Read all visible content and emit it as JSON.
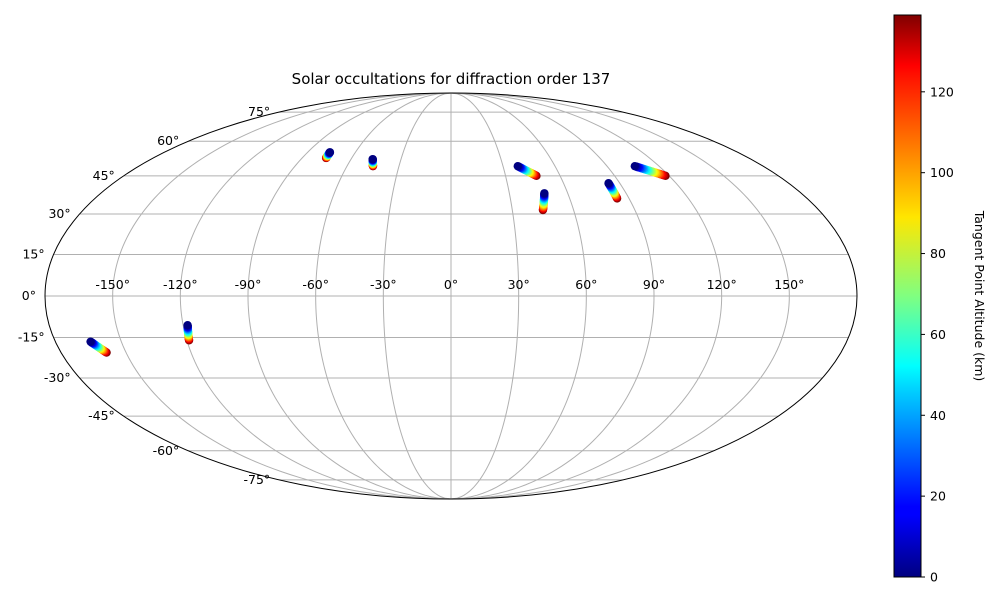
{
  "chart_data": {
    "type": "scatter",
    "projection": "mollweide",
    "title": "Solar occultations for diffraction order 137",
    "lon_ticks": [
      "-150°",
      "-120°",
      "-90°",
      "-60°",
      "-30°",
      "0°",
      "30°",
      "60°",
      "90°",
      "120°",
      "150°"
    ],
    "lon_tick_values": [
      -150,
      -120,
      -90,
      -60,
      -30,
      0,
      30,
      60,
      90,
      120,
      150
    ],
    "lat_ticks": [
      "-75°",
      "-60°",
      "-45°",
      "-30°",
      "-15°",
      "0°",
      "15°",
      "30°",
      "45°",
      "60°",
      "75°"
    ],
    "lat_tick_values": [
      -75,
      -60,
      -45,
      -30,
      -15,
      0,
      15,
      30,
      45,
      60,
      75
    ],
    "grid": true,
    "colorbar": {
      "label": "Tangent Point Altitude (km)",
      "colormap": "jet",
      "range": [
        0,
        139
      ],
      "ticks": [
        "0",
        "20",
        "40",
        "60",
        "80",
        "100",
        "120"
      ],
      "tick_values": [
        0,
        20,
        40,
        60,
        80,
        100,
        120
      ]
    },
    "tracks": [
      {
        "start": {
          "lon": -164,
          "lat": -16.5,
          "alt": 0
        },
        "end": {
          "lon": -159,
          "lat": -20.5,
          "alt": 139
        }
      },
      {
        "start": {
          "lon": -118,
          "lat": -10.5,
          "alt": 0
        },
        "end": {
          "lon": -119,
          "lat": -16,
          "alt": 139
        }
      },
      {
        "start": {
          "lon": -76,
          "lat": 55,
          "alt": 0
        },
        "end": {
          "lon": -75.5,
          "lat": 52.5,
          "alt": 139
        }
      },
      {
        "start": {
          "lon": -47,
          "lat": 52,
          "alt": 0
        },
        "end": {
          "lon": -45,
          "lat": 49,
          "alt": 139
        }
      },
      {
        "start": {
          "lon": 38.5,
          "lat": 49,
          "alt": 0
        },
        "end": {
          "lon": 47,
          "lat": 45,
          "alt": 139
        }
      },
      {
        "start": {
          "lon": 48,
          "lat": 38,
          "alt": 0
        },
        "end": {
          "lon": 45,
          "lat": 31.5,
          "alt": 139
        }
      },
      {
        "start": {
          "lon": 84,
          "lat": 42,
          "alt": 0
        },
        "end": {
          "lon": 84,
          "lat": 36,
          "alt": 139
        }
      },
      {
        "start": {
          "lon": 106,
          "lat": 49,
          "alt": 0
        },
        "end": {
          "lon": 118,
          "lat": 45,
          "alt": 139
        }
      }
    ]
  }
}
